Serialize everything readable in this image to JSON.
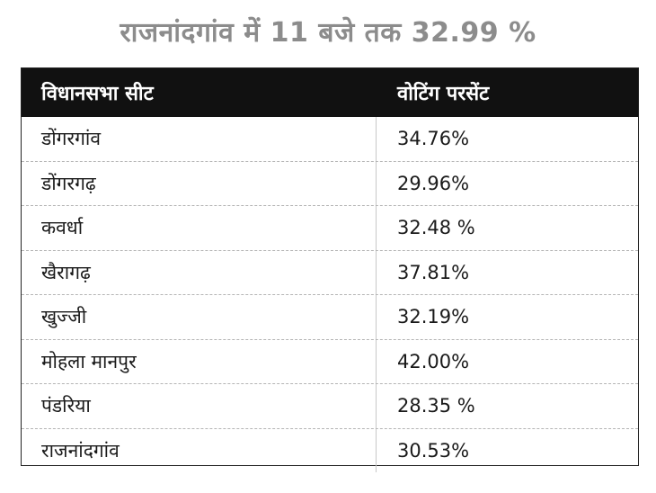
{
  "title": "राजनांदगांव में 11 बजे तक  32.99 %",
  "table": {
    "headers": [
      "विधानसभा सीट",
      "वोटिंग परसेंट"
    ],
    "rows": [
      [
        "डोंगरगांव",
        "34.76%"
      ],
      [
        "डोंगरगढ़",
        "29.96%"
      ],
      [
        "कवर्धा",
        "32.48 %"
      ],
      [
        "खैरागढ़",
        "37.81%"
      ],
      [
        "खुज्जी",
        "32.19%"
      ],
      [
        "मोहला मानपुर",
        "42.00%"
      ],
      [
        "पंडरिया",
        "28.35 %"
      ],
      [
        "राजनांदगांव",
        "30.53%"
      ]
    ]
  }
}
